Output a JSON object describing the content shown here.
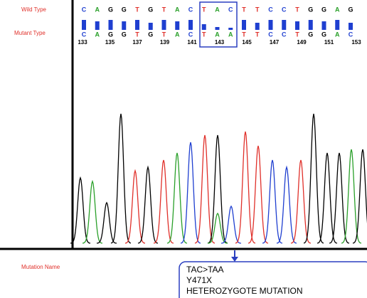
{
  "labels": {
    "wild_type": "Wild Type",
    "mutant_type": "Mutant Type",
    "mutation_name": "Mutation Name"
  },
  "wild_sequence": [
    "C",
    "A",
    "G",
    "G",
    "T",
    "G",
    "T",
    "A",
    "C",
    "T",
    "A",
    "C",
    "T",
    "T",
    "C",
    "C",
    "T",
    "G",
    "G",
    "A",
    "G"
  ],
  "mutant_sequence": [
    "C",
    "A",
    "G",
    "G",
    "T",
    "G",
    "T",
    "A",
    "C",
    "T",
    "A",
    "A",
    "T",
    "T",
    "C",
    "C",
    "T",
    "G",
    "G",
    "A",
    "C"
  ],
  "positions": [
    "133",
    "135",
    "137",
    "139",
    "141",
    "143",
    "145",
    "147",
    "149",
    "151",
    "153"
  ],
  "mutation": {
    "lines": [
      "TAC>TAA",
      "Y471X",
      "HETEROZYGOTE MUTATION"
    ]
  }
}
